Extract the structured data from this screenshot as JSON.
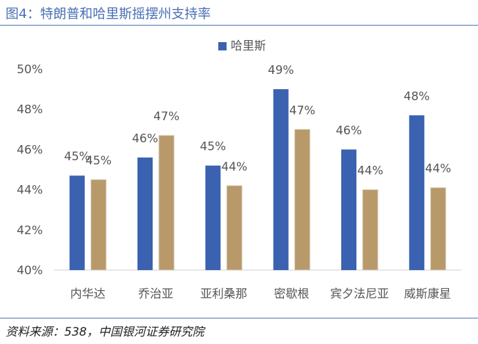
{
  "figure": {
    "title": "图4：特朗普和哈里斯摇摆州支持率",
    "source": "资料来源：538，中国银河证券研究院"
  },
  "colors": {
    "series1": "#3a62b0",
    "series2": "#b8996a",
    "axis": "#cfcfcf",
    "rule": "#4a6fb5"
  },
  "chart_data": {
    "type": "bar",
    "categories": [
      "内华达",
      "乔治亚",
      "亚利桑那",
      "密歇根",
      "宾夕法尼亚",
      "威斯康星"
    ],
    "series": [
      {
        "name": "哈里斯",
        "values": [
          44.7,
          45.6,
          45.2,
          49.0,
          46.0,
          47.7
        ],
        "labels": [
          "45%",
          "46%",
          "45%",
          "49%",
          "46%",
          "48%"
        ]
      },
      {
        "values": [
          44.5,
          46.7,
          44.2,
          47.0,
          44.0,
          44.1
        ],
        "labels": [
          "45%",
          "47%",
          "44%",
          "47%",
          "44%",
          "44%"
        ]
      }
    ],
    "yticks": [
      "40%",
      "42%",
      "44%",
      "46%",
      "48%",
      "50%"
    ],
    "ylim": [
      40,
      50
    ],
    "legend": "top-center",
    "grid": false
  }
}
